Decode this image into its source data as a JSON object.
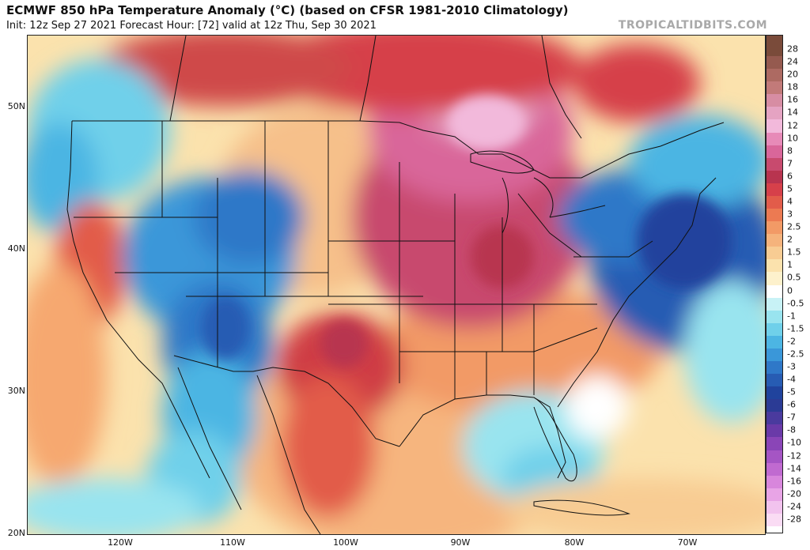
{
  "header": {
    "title": "ECMWF 850 hPa Temperature Anomaly (°C) (based on CFSR 1981-2010 Climatology)",
    "subtitle": "Init: 12z Sep 27 2021   Forecast Hour: [72]   valid at 12z Thu, Sep 30 2021",
    "brand": "TROPICALTIDBITS.COM"
  },
  "map": {
    "lat_ticks": [
      "50N",
      "40N",
      "30N",
      "20N"
    ],
    "lon_ticks": [
      "120W",
      "110W",
      "100W",
      "90W",
      "80W",
      "70W"
    ]
  },
  "colorbar": {
    "labels": [
      "28",
      "24",
      "20",
      "18",
      "16",
      "14",
      "12",
      "10",
      "8",
      "7",
      "6",
      "5",
      "4",
      "3",
      "2.5",
      "2",
      "1.5",
      "1",
      "0.5",
      "0",
      "-0.5",
      "-1",
      "-1.5",
      "-2",
      "-2.5",
      "-3",
      "-4",
      "-5",
      "-6",
      "-7",
      "-8",
      "-10",
      "-12",
      "-14",
      "-16",
      "-20",
      "-24",
      "-28"
    ],
    "colors": [
      "#7a4b3a",
      "#955a4f",
      "#ad6a62",
      "#c27a79",
      "#d78da3",
      "#e5a3c2",
      "#f2b9db",
      "#e78ab8",
      "#d9669a",
      "#c84a6e",
      "#b8344f",
      "#d6404a",
      "#e25c4a",
      "#ec7a52",
      "#f29a66",
      "#f5b37c",
      "#f8cc93",
      "#fbe2ad",
      "#fdf1cc",
      "#ffffff",
      "#c8f2f6",
      "#99e4ef",
      "#6fd0ea",
      "#4cb5e3",
      "#3a97d9",
      "#2f78c8",
      "#275cb3",
      "#20439d",
      "#2b3b95",
      "#4a3a9e",
      "#6a3aa8",
      "#8a45b7",
      "#a555c4",
      "#c06ad0",
      "#d886dc",
      "#e8a4e6",
      "#f2c3ee",
      "#fadcf4"
    ]
  }
}
